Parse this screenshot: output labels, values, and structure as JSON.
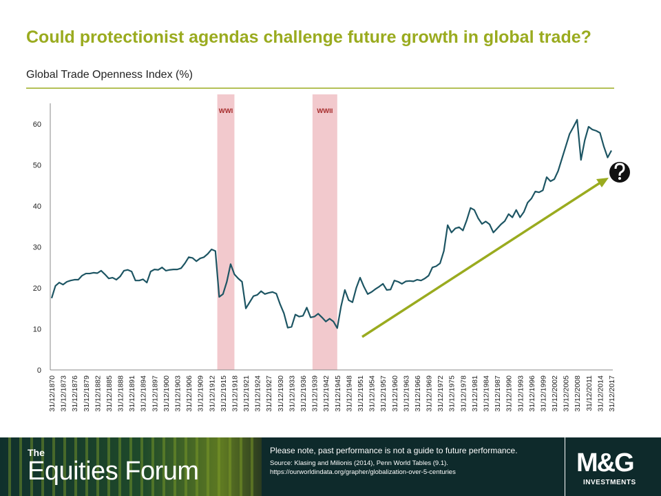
{
  "chart_data": {
    "type": "line",
    "title": "Could protectionist agendas challenge future growth in global trade?",
    "subtitle": "Global Trade Openness Index (%)",
    "color": "#1d5563",
    "band_color": "#f2c9cd",
    "categories": [
      "31/12/1870",
      null,
      null,
      "31/12/1873",
      null,
      null,
      "31/12/1876",
      null,
      null,
      "31/12/1879",
      null,
      null,
      "31/12/1882",
      null,
      null,
      "31/12/1885",
      null,
      null,
      "31/12/1888",
      null,
      null,
      "31/12/1891",
      null,
      null,
      "31/12/1894",
      null,
      null,
      "31/12/1897",
      null,
      null,
      "31/12/1900",
      null,
      null,
      "31/12/1903",
      null,
      null,
      "31/12/1906",
      null,
      null,
      "31/12/1909",
      null,
      null,
      "31/12/1912",
      null,
      null,
      "31/12/1915",
      null,
      null,
      "31/12/1918",
      null,
      null,
      "31/12/1921",
      null,
      null,
      "31/12/1924",
      null,
      null,
      "31/12/1927",
      null,
      null,
      "31/12/1930",
      null,
      null,
      "31/12/1933",
      null,
      null,
      "31/12/1936",
      null,
      null,
      "31/12/1939",
      null,
      null,
      "31/12/1942",
      null,
      null,
      "31/12/1945",
      null,
      null,
      "31/12/1948",
      null,
      null,
      "31/12/1951",
      null,
      null,
      "31/12/1954",
      null,
      null,
      "31/12/1957",
      null,
      null,
      "31/12/1960",
      null,
      null,
      "31/12/1963",
      null,
      null,
      "31/12/1966",
      null,
      null,
      "31/12/1969",
      null,
      null,
      "31/12/1972",
      null,
      null,
      "31/12/1975",
      null,
      null,
      "31/12/1978",
      null,
      null,
      "31/12/1981",
      null,
      null,
      "31/12/1984",
      null,
      null,
      "31/12/1987",
      null,
      null,
      "31/12/1990",
      null,
      null,
      "31/12/1993",
      null,
      null,
      "31/12/1996",
      null,
      null,
      "31/12/1999",
      null,
      null,
      "31/12/2002",
      null,
      null,
      "31/12/2005",
      null,
      null,
      "31/12/2008",
      null,
      null,
      "31/12/2011",
      null,
      null,
      "31/12/2014",
      null,
      null,
      "31/12/2017"
    ],
    "values": [
      17.5,
      20.5,
      21.3,
      20.8,
      21.5,
      21.8,
      22,
      22,
      23,
      23.5,
      23.5,
      23.7,
      23.6,
      24.2,
      23.3,
      22.3,
      22.5,
      22,
      22.8,
      24.2,
      24.4,
      24,
      21.8,
      21.8,
      22.1,
      21.3,
      24,
      24.5,
      24.4,
      25,
      24.2,
      24.4,
      24.5,
      24.5,
      24.8,
      26,
      27.5,
      27.3,
      26.5,
      27.2,
      27.5,
      28.3,
      29.4,
      29,
      17.8,
      18.5,
      21.5,
      25.8,
      23.3,
      22.3,
      21.5,
      15,
      16.5,
      18,
      18.3,
      19.2,
      18.5,
      18.8,
      19,
      18.6,
      16,
      13.8,
      10.3,
      10.5,
      13.5,
      13,
      13.2,
      15.2,
      12.8,
      13,
      13.7,
      12.8,
      11.8,
      12.5,
      11.8,
      10.2,
      15.5,
      19.5,
      17,
      16.5,
      20,
      22.5,
      20.3,
      18.5,
      19,
      19.7,
      20.3,
      21,
      19.5,
      19.6,
      21.8,
      21.5,
      21,
      21.6,
      21.7,
      21.6,
      22,
      21.8,
      22.3,
      23,
      25,
      25.3,
      26,
      29,
      35.3,
      33.5,
      34.5,
      34.8,
      34,
      36.5,
      39.5,
      39,
      37,
      35.6,
      36.2,
      35.5,
      33.5,
      34.5,
      35.5,
      36.3,
      38,
      37.2,
      39,
      37.2,
      38.5,
      40.8,
      41.8,
      43.5,
      43.3,
      43.8,
      47,
      46,
      46.5,
      48.5,
      51.5,
      54.5,
      57.5,
      59.2,
      61,
      51.2,
      56,
      59.3,
      58.6,
      58.3,
      57.8,
      54.5,
      51.8,
      53.5
    ],
    "ylim": [
      0,
      65
    ],
    "yticks": [
      0,
      10,
      20,
      30,
      40,
      50,
      60
    ],
    "grid": false,
    "bands": [
      {
        "label": "WWI",
        "start": 1914,
        "end": 1918
      },
      {
        "label": "WWII",
        "start": 1939,
        "end": 1945
      }
    ]
  },
  "footer": {
    "brand_small": "The",
    "brand": "Equities Forum",
    "disclaimer": "Please note, past performance  is not a guide to future performance.",
    "source_lines": [
      "Source: Klasing and Milionis  (2014), Penn World Tables (9.1).",
      "https://ourworldindata.org/grapher/globalization-over-5-centuries"
    ],
    "logo": "M&G",
    "logo_sub": "INVESTMENTS"
  }
}
